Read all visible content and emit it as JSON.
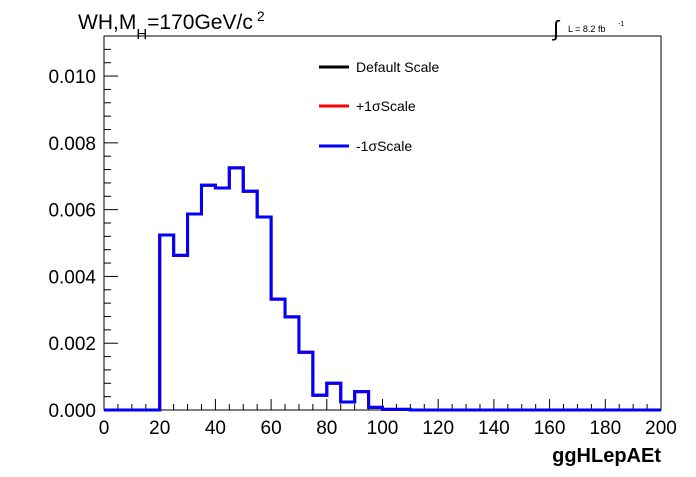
{
  "chart_data": {
    "type": "histogram",
    "title": {
      "main": "WH,M",
      "sub": "H",
      "value": "=170GeV/c",
      "sup": "2"
    },
    "luminosity": {
      "symbol": "∫",
      "text": "L = 8.2 fb",
      "sup": "-1"
    },
    "xlabel": "ggHLepAEt",
    "xlim": [
      0,
      200
    ],
    "ylim": [
      0,
      0.0112
    ],
    "x_ticks": [
      "0",
      "20",
      "40",
      "60",
      "80",
      "100",
      "120",
      "140",
      "160",
      "180",
      "200"
    ],
    "y_ticks": [
      "0.000",
      "0.002",
      "0.004",
      "0.006",
      "0.008",
      "0.010"
    ],
    "bin_width": 5,
    "bins_x_start": [
      0,
      5,
      10,
      15,
      20,
      25,
      30,
      35,
      40,
      45,
      50,
      55,
      60,
      65,
      70,
      75,
      80,
      85,
      90,
      95,
      100,
      105,
      110,
      115,
      120,
      125,
      130,
      135,
      140,
      145,
      150,
      155,
      160,
      165,
      170,
      175,
      180,
      185,
      190,
      195
    ],
    "legend_position": "top-center",
    "series": [
      {
        "name": "Default Scale",
        "color": "#000000",
        "values": [
          0,
          0,
          0,
          0,
          0.00524,
          0.00463,
          0.00587,
          0.00673,
          0.00665,
          0.00725,
          0.00655,
          0.00578,
          0.00332,
          0.00279,
          0.00173,
          0.00044,
          0.0008,
          0.00024,
          0.00055,
          8e-05,
          2e-05,
          2e-05,
          0,
          0,
          0,
          0,
          0,
          0,
          0,
          0,
          0,
          0,
          0,
          0,
          0,
          0,
          0,
          0,
          0,
          0
        ]
      },
      {
        "name": "+1σScale",
        "color": "#ff0000",
        "values": [
          0,
          0,
          0,
          0,
          0.00524,
          0.00463,
          0.00587,
          0.00673,
          0.00665,
          0.00725,
          0.00655,
          0.00578,
          0.00332,
          0.00279,
          0.00173,
          0.00044,
          0.0008,
          0.00024,
          0.00055,
          8e-05,
          2e-05,
          2e-05,
          0,
          0,
          0,
          0,
          0,
          0,
          0,
          0,
          0,
          0,
          0,
          0,
          0,
          0,
          0,
          0,
          0,
          0
        ]
      },
      {
        "name": "-1σScale",
        "color": "#0000ff",
        "values": [
          0,
          0,
          0,
          0,
          0.00524,
          0.00463,
          0.00587,
          0.00673,
          0.00665,
          0.00725,
          0.00655,
          0.00578,
          0.00332,
          0.00279,
          0.00173,
          0.00044,
          0.0008,
          0.00024,
          0.00055,
          8e-05,
          2e-05,
          2e-05,
          0,
          0,
          0,
          0,
          0,
          0,
          0,
          0,
          0,
          0,
          0,
          0,
          0,
          0,
          0,
          0,
          0,
          0
        ]
      }
    ]
  }
}
